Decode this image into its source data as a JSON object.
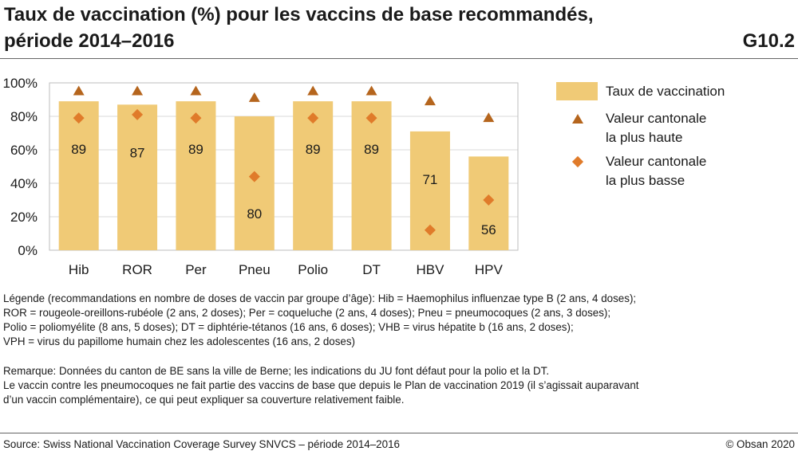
{
  "header": {
    "title_line1": "Taux de vaccination (%) pour les vaccins de base recommandés,",
    "title_line2": "période 2014–2016",
    "figure_id": "G10.2"
  },
  "chart_data": {
    "type": "bar",
    "title": "Taux de vaccination (%) pour les vaccins de base recommandés, période 2014–2016",
    "xlabel": "",
    "ylabel": "",
    "ylim": [
      0,
      100
    ],
    "yticks": [
      0,
      20,
      40,
      60,
      80,
      100
    ],
    "ytick_labels": [
      "0%",
      "20%",
      "40%",
      "60%",
      "80%",
      "100%"
    ],
    "grid": "horizontal",
    "categories": [
      "Hib",
      "ROR",
      "Per",
      "Pneu",
      "Polio",
      "DT",
      "HBV",
      "HPV"
    ],
    "series": [
      {
        "name": "Taux de vaccination",
        "kind": "bar",
        "values": [
          89,
          87,
          89,
          80,
          89,
          89,
          71,
          56
        ]
      },
      {
        "name": "Valeur cantonale la plus haute",
        "kind": "triangle-marker",
        "values": [
          95,
          95,
          95,
          91,
          95,
          95,
          89,
          79
        ]
      },
      {
        "name": "Valeur cantonale la plus basse",
        "kind": "diamond-marker",
        "values": [
          79,
          81,
          79,
          44,
          79,
          79,
          12,
          30
        ]
      }
    ],
    "bar_labels": [
      "89",
      "87",
      "89",
      "80",
      "89",
      "89",
      "71",
      "56"
    ],
    "legend_position": "right",
    "colors": {
      "bar": "#F0CA76",
      "high": "#B5651D",
      "low": "#E07B2A",
      "grid": "#d9d9d9",
      "frame": "#bdbdbd"
    }
  },
  "legend": {
    "bar_label": "Taux de vaccination",
    "high_line1": "Valeur cantonale",
    "high_line2": "la plus haute",
    "low_line1": "Valeur cantonale",
    "low_line2": "la plus basse"
  },
  "notes": {
    "line1": "Légende (recommandations en nombre de doses de vaccin par groupe d’âge): Hib = Haemophilus influenzae type B (2 ans, 4 doses);",
    "line2": "ROR = rougeole-oreillons-rubéole (2 ans, 2 doses); Per = coqueluche (2 ans, 4 doses); Pneu = pneumocoques (2 ans, 3 doses);",
    "line3": "Polio = poliomyélite (8 ans, 5 doses); DT = diphtérie-tétanos (16 ans, 6 doses); VHB  = virus hépatite b (16 ans, 2 doses);",
    "line4": "VPH  = virus du papillome humain chez les adolescentes (16 ans, 2 doses)"
  },
  "remark": {
    "line1": "Remarque: Données du canton de BE sans la ville de Berne; les indications du JU font défaut pour la polio et la DT.",
    "line2": "Le vaccin contre les pneumocoques ne fait partie des vaccins de base que depuis le Plan de vaccination 2019 (il s’agissait auparavant",
    "line3": "d’un vaccin complémentaire), ce qui peut expliquer sa couverture relativement faible."
  },
  "footer": {
    "source": "Source: Swiss National Vaccination Coverage Survey SNVCS – période  2014–2016",
    "copyright": "© Obsan 2020"
  }
}
